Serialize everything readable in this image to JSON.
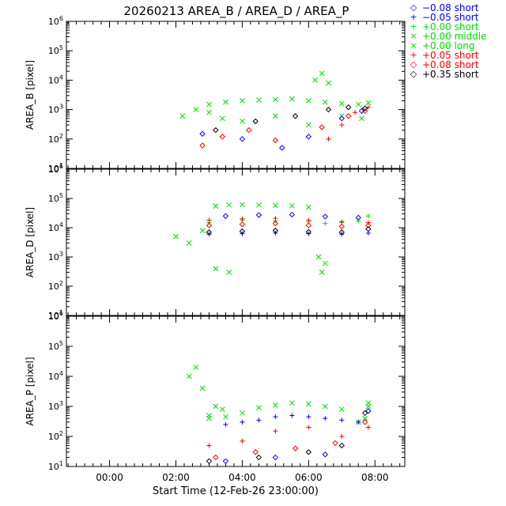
{
  "chart_data": {
    "type": "scatter",
    "title": "20260213 AREA_B / AREA_D / AREA_P",
    "xlabel": "Start Time (12-Feb-26 23:00:00)",
    "x_unit": "hours since 12-Feb-26 23:00:00",
    "xlim": [
      -0.3,
      9.9
    ],
    "x_ticks": [
      {
        "value": 1,
        "label": "00:00"
      },
      {
        "value": 3,
        "label": "02:00"
      },
      {
        "value": 5,
        "label": "04:00"
      },
      {
        "value": 7,
        "label": "06:00"
      },
      {
        "value": 9,
        "label": "08:00"
      }
    ],
    "y_scale": "log",
    "ylim": [
      10,
      1000000
    ],
    "y_ticks": [
      {
        "value": 10,
        "label": "10",
        "exp": "1"
      },
      {
        "value": 100,
        "label": "10",
        "exp": "2"
      },
      {
        "value": 1000,
        "label": "10",
        "exp": "3"
      },
      {
        "value": 10000,
        "label": "10",
        "exp": "4"
      },
      {
        "value": 100000,
        "label": "10",
        "exp": "5"
      },
      {
        "value": 1000000,
        "label": "10",
        "exp": "6"
      }
    ],
    "legend": [
      {
        "symbol": "◇",
        "color": "#0000ff",
        "label": "−0.08 short"
      },
      {
        "symbol": "+",
        "color": "#0000ff",
        "label": "−0.05 short"
      },
      {
        "symbol": "+",
        "color": "#00dd00",
        "label": "+0.00 short"
      },
      {
        "symbol": "×",
        "color": "#00dd00",
        "label": "+0.00 middle"
      },
      {
        "symbol": "×",
        "color": "#00dd00",
        "label": "+0.00 long"
      },
      {
        "symbol": "+",
        "color": "#ff0000",
        "label": "+0.05 short"
      },
      {
        "symbol": "◇",
        "color": "#ff0000",
        "label": "+0.08 short"
      },
      {
        "symbol": "◇",
        "color": "#000000",
        "label": "+0.35 short"
      }
    ],
    "panels": [
      {
        "ylabel": "AREA_B [pixel]",
        "series": [
          {
            "name": "+0.00 long",
            "color": "#00dd00",
            "marker": "x",
            "x": [
              4.0,
              4.5,
              5.0,
              5.5,
              6.0,
              6.5,
              7.0,
              7.5,
              8.0,
              8.5,
              8.8
            ],
            "y": [
              1500,
              1800,
              2000,
              2100,
              2200,
              2300,
              2000,
              1800,
              1600,
              1500,
              1700
            ]
          },
          {
            "name": "+0.00 middle",
            "color": "#00dd00",
            "marker": "x",
            "x": [
              3.2,
              3.6,
              4.0,
              4.4,
              5.0,
              6.0,
              7.0,
              7.2,
              7.4,
              7.6,
              8.0,
              8.6
            ],
            "y": [
              600,
              1000,
              800,
              500,
              400,
              600,
              300,
              10000,
              17000,
              8000,
              600,
              500
            ]
          },
          {
            "name": "+0.05 short",
            "color": "#ff0000",
            "marker": "+",
            "x": [
              7.6,
              8.0,
              8.4,
              8.8
            ],
            "y": [
              100,
              300,
              800,
              1200
            ]
          },
          {
            "name": "+0.08 short",
            "color": "#ff0000",
            "marker": "diamond",
            "x": [
              3.8,
              4.4,
              5.2,
              6.0,
              7.4,
              8.2,
              8.7
            ],
            "y": [
              60,
              120,
              200,
              90,
              250,
              600,
              900
            ]
          },
          {
            "name": "−0.08 short",
            "color": "#0000ff",
            "marker": "diamond",
            "x": [
              3.8,
              5.0,
              6.2,
              7.0,
              8.0,
              8.6
            ],
            "y": [
              150,
              100,
              50,
              120,
              500,
              900
            ]
          },
          {
            "name": "+0.35 short",
            "color": "#000000",
            "marker": "diamond",
            "x": [
              4.2,
              5.4,
              6.6,
              7.6,
              8.2,
              8.7
            ],
            "y": [
              200,
              400,
              600,
              1000,
              1200,
              1100
            ]
          }
        ]
      },
      {
        "ylabel": "AREA_D [pixel]",
        "series": [
          {
            "name": "+0.00 long",
            "color": "#00dd00",
            "marker": "x",
            "x": [
              4.2,
              4.6,
              5.0,
              5.5,
              6.0,
              6.5,
              7.0
            ],
            "y": [
              55000,
              60000,
              62000,
              60000,
              58000,
              56000,
              50000
            ]
          },
          {
            "name": "+0.00 short",
            "color": "#00dd00",
            "marker": "+",
            "x": [
              4.0,
              5.0,
              6.0,
              7.0,
              7.5,
              8.0,
              8.5,
              8.8
            ],
            "y": [
              15000,
              18000,
              17000,
              16000,
              14000,
              15000,
              17000,
              25000
            ]
          },
          {
            "name": "+0.05 short",
            "color": "#ff0000",
            "marker": "+",
            "x": [
              4.0,
              5.0,
              6.0,
              7.0,
              8.0,
              8.8
            ],
            "y": [
              18000,
              20000,
              21000,
              18000,
              16000,
              15000
            ]
          },
          {
            "name": "+0.08 short",
            "color": "#ff0000",
            "marker": "diamond",
            "x": [
              4.0,
              5.0,
              6.0,
              7.0,
              8.0,
              8.8
            ],
            "y": [
              12000,
              13000,
              14000,
              12000,
              11000,
              12000
            ]
          },
          {
            "name": "−0.08 short",
            "color": "#0000ff",
            "marker": "diamond",
            "x": [
              4.5,
              5.5,
              6.5,
              7.5,
              8.5
            ],
            "y": [
              25000,
              27000,
              28000,
              24000,
              22000
            ]
          },
          {
            "name": "−0.05 short",
            "color": "#0000ff",
            "marker": "+",
            "x": [
              4.0,
              5.0,
              6.0,
              7.0,
              8.0,
              8.8
            ],
            "y": [
              6000,
              6200,
              6500,
              6200,
              6000,
              6500
            ]
          },
          {
            "name": "+0.35 short",
            "color": "#000000",
            "marker": "diamond",
            "x": [
              4.0,
              5.0,
              6.0,
              7.0,
              8.0,
              8.8
            ],
            "y": [
              7000,
              7500,
              8000,
              7200,
              7000,
              9000
            ]
          },
          {
            "name": "+0.00 middle",
            "color": "#00dd00",
            "marker": "x",
            "x": [
              3.0,
              3.4,
              3.8,
              4.2,
              4.6,
              7.3,
              7.4,
              7.5
            ],
            "y": [
              5000,
              3000,
              8000,
              400,
              300,
              1000,
              300,
              600
            ]
          }
        ]
      },
      {
        "ylabel": "AREA_P [pixel]",
        "series": [
          {
            "name": "+0.00 long",
            "color": "#00dd00",
            "marker": "x",
            "x": [
              4.0,
              4.5,
              5.0,
              5.5,
              6.0,
              6.5,
              7.0,
              7.5,
              8.0,
              8.5,
              8.8
            ],
            "y": [
              400,
              450,
              600,
              900,
              1100,
              1300,
              1200,
              1000,
              800,
              300,
              1000
            ]
          },
          {
            "name": "−0.05 short",
            "color": "#0000ff",
            "marker": "+",
            "x": [
              4.5,
              5.0,
              5.5,
              6.0,
              6.5,
              7.0,
              7.5,
              8.0,
              8.5
            ],
            "y": [
              250,
              300,
              350,
              450,
              500,
              450,
              400,
              350,
              300
            ]
          },
          {
            "name": "+0.00 middle",
            "color": "#00dd00",
            "marker": "x",
            "x": [
              3.4,
              3.6,
              3.8,
              4.0,
              4.2,
              4.4,
              8.7,
              8.8
            ],
            "y": [
              10000,
              20000,
              4000,
              500,
              1000,
              800,
              400,
              1300
            ]
          },
          {
            "name": "+0.05 short",
            "color": "#ff0000",
            "marker": "+",
            "x": [
              4.0,
              5.0,
              6.0,
              7.0,
              8.0,
              8.8
            ],
            "y": [
              50,
              70,
              150,
              200,
              100,
              200
            ]
          },
          {
            "name": "+0.08 short",
            "color": "#ff0000",
            "marker": "diamond",
            "x": [
              4.2,
              5.4,
              6.6,
              7.8,
              8.7
            ],
            "y": [
              20,
              30,
              40,
              60,
              300
            ]
          },
          {
            "name": "−0.08 short",
            "color": "#0000ff",
            "marker": "diamond",
            "x": [
              4.5,
              6.0,
              7.5,
              8.8
            ],
            "y": [
              15,
              20,
              25,
              700
            ]
          },
          {
            "name": "+0.35 short",
            "color": "#000000",
            "marker": "diamond",
            "x": [
              4.0,
              5.5,
              7.0,
              8.0,
              8.7
            ],
            "y": [
              15,
              20,
              30,
              50,
              600
            ]
          }
        ]
      }
    ]
  }
}
